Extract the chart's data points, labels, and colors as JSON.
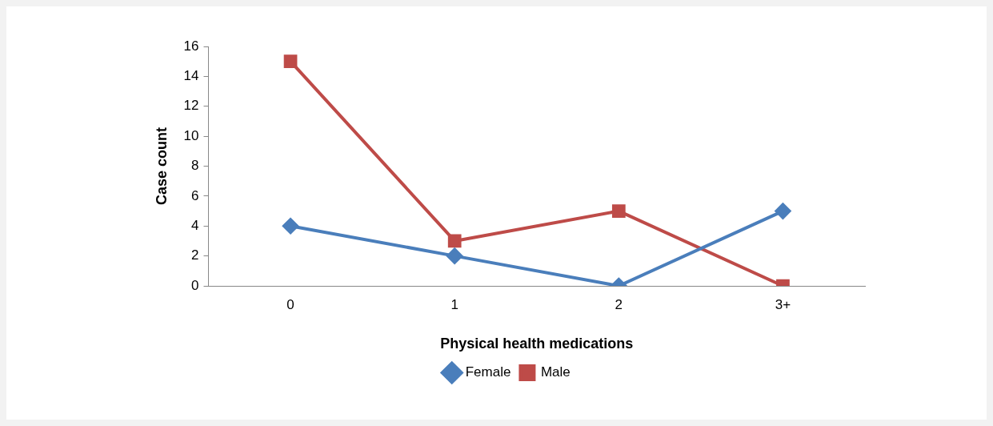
{
  "chart_data": {
    "type": "line",
    "xlabel": "Physical health medications",
    "ylabel": "Case count",
    "categories": [
      "0",
      "1",
      "2",
      "3+"
    ],
    "series": [
      {
        "name": "Female",
        "color": "#4a7ebb",
        "values": [
          4,
          2,
          0,
          5
        ],
        "marker": "diamond"
      },
      {
        "name": "Male",
        "color": "#be4b48",
        "values": [
          15,
          3,
          5,
          0
        ],
        "marker": "square"
      }
    ],
    "ylim": [
      0,
      16
    ],
    "yticks": [
      0,
      2,
      4,
      6,
      8,
      10,
      12,
      14,
      16
    ],
    "grid": false,
    "legend": "bottom",
    "line_style": "solid"
  }
}
